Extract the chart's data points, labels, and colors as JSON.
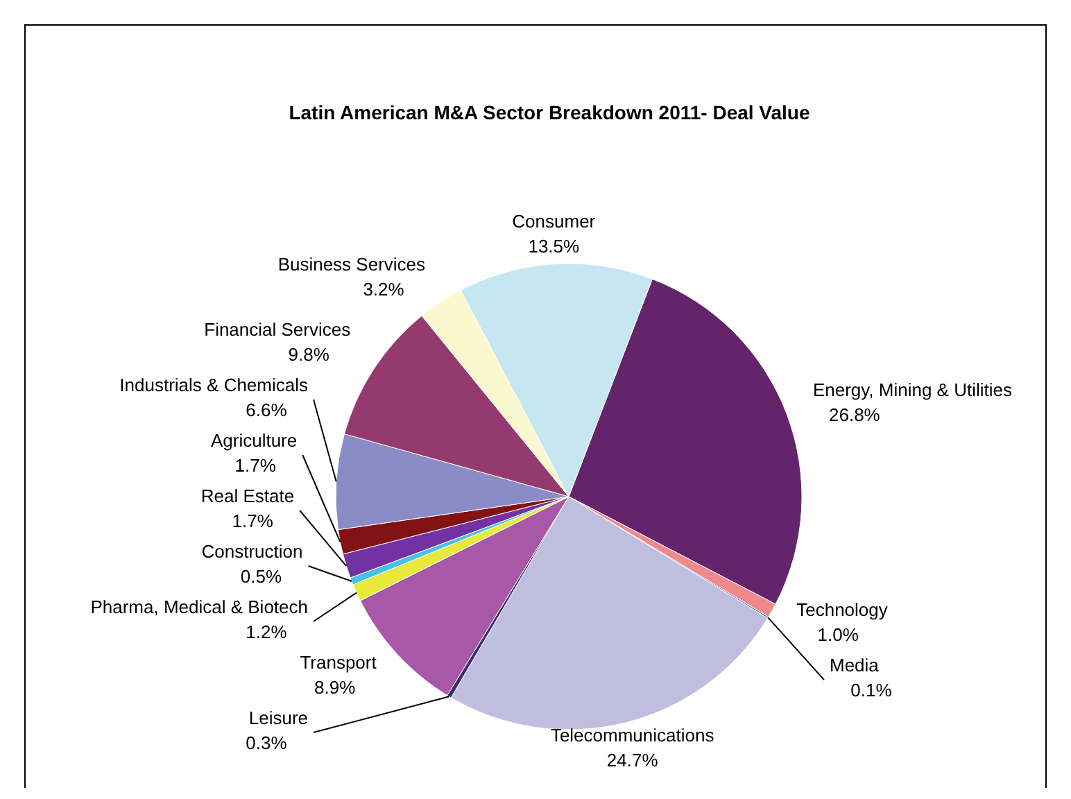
{
  "chart_data": {
    "type": "pie",
    "title": "Latin American M&A Sector Breakdown 2011- Deal Value",
    "categories": [
      "Energy, Mining & Utilities",
      "Technology",
      "Media",
      "Telecommunications",
      "Leisure",
      "Transport",
      "Pharma, Medical & Biotech",
      "Construction",
      "Real Estate",
      "Agriculture",
      "Industrials & Chemicals",
      "Financial Services",
      "Business Services",
      "Consumer"
    ],
    "values": [
      26.8,
      1.0,
      0.1,
      24.7,
      0.3,
      8.9,
      1.2,
      0.5,
      1.7,
      1.7,
      6.6,
      9.8,
      3.2,
      13.5
    ],
    "value_labels": [
      "26.8%",
      "1.0%",
      "0.1%",
      "24.7%",
      "0.3%",
      "8.9%",
      "1.2%",
      "0.5%",
      "1.7%",
      "1.7%",
      "6.6%",
      "9.8%",
      "3.2%",
      "13.5%"
    ],
    "colors": [
      "#63246b",
      "#f08a8a",
      "#2f5f9e",
      "#c0bedf",
      "#3b2b73",
      "#a957a8",
      "#e9e93a",
      "#45c3e3",
      "#7232a3",
      "#831214",
      "#8a8cc6",
      "#953a6e",
      "#fbf7cf",
      "#c6e6f1"
    ]
  }
}
